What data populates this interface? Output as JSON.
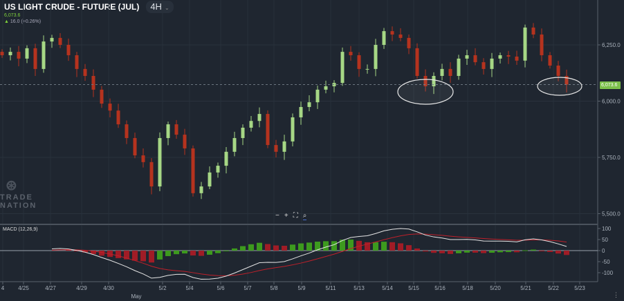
{
  "header": {
    "title": "US LIGHT CRUDE - FUTURE (JUL)",
    "timeframe": "4H",
    "price": "6,073.6",
    "change": "16.0 (+0.26%)",
    "change_icon": "arrow-up-icon"
  },
  "logo": {
    "line1": "TRADE",
    "line2": "NATION"
  },
  "zoom_controls": {
    "minus": "−",
    "plus": "+",
    "fit": "⛶",
    "magnify": "⌕"
  },
  "last_price_label": "6,073.6",
  "price_axis": {
    "ticks": [
      "6,250.0",
      "6,000.0",
      "5,750.0",
      "5,500.0"
    ]
  },
  "macd": {
    "label": "MACD (12,26,9)",
    "ticks": [
      "100",
      "50",
      "0",
      "-50",
      "-100"
    ],
    "fast": 12,
    "slow": 26,
    "signal": 9
  },
  "time_axis": {
    "ticks": [
      "4",
      "4/25",
      "4/27",
      "4/29",
      "4/30",
      "5/2",
      "5/4",
      "5/6",
      "5/7",
      "5/8",
      "5/9",
      "5/11",
      "5/13",
      "5/14",
      "5/15",
      "5/16",
      "5/18",
      "5/20",
      "5/21",
      "5/22",
      "5/23"
    ],
    "month_label": "May"
  },
  "colors": {
    "up": "#a6d785",
    "down": "#b5331e",
    "macd_line": "#e6e6e6",
    "signal_line": "#c0202a",
    "hist_up": "#3d9a1e",
    "hist_down": "#a01c26",
    "last_price": "#7cc04b"
  },
  "chart_data": {
    "type": "candlestick",
    "closes": [
      6204,
      6219,
      6189,
      6235,
      6143,
      6265,
      6281,
      6250,
      6204,
      6143,
      6112,
      6051,
      5989,
      5958,
      5897,
      5836,
      5759,
      5729,
      5621,
      5836,
      5897,
      5851,
      5790,
      5591,
      5621,
      5683,
      5713,
      5775,
      5836,
      5882,
      5912,
      5943,
      5805,
      5775,
      5821,
      5928,
      5974,
      5995,
      6051,
      6066,
      6081,
      6219,
      6204,
      6143,
      6143,
      6250,
      6311,
      6296,
      6281,
      6235,
      6112,
      6066,
      6112,
      6143,
      6112,
      6189,
      6204,
      6173,
      6143,
      6189,
      6204,
      6198,
      6180,
      6327,
      6296,
      6204,
      6158,
      6112,
      6073.6
    ],
    "ylim": [
      5450,
      6430
    ],
    "annotations": [
      "circle-near-5/15-low",
      "circle-near-5/22-low"
    ]
  }
}
